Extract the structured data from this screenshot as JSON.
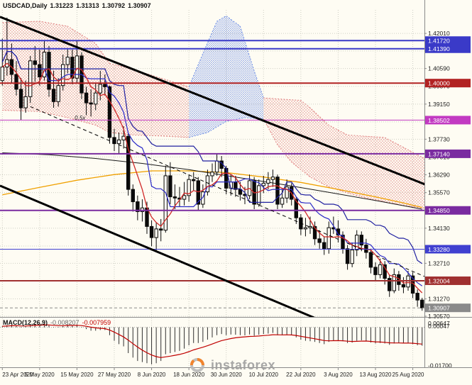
{
  "title": {
    "symbol": "USDCAD,Daily",
    "open": "1.31223",
    "high": "1.31313",
    "low": "1.30792",
    "close": "1.30907"
  },
  "watermark": {
    "text": "instaforex"
  },
  "macd_panel": {
    "label": "MACD(12,26,9)",
    "value_main": "-0.008207",
    "value_signal": "-0.007959"
  },
  "colors": {
    "background": "#FEFCF3",
    "grid": "#CFCFC4",
    "axis_text": "#1A1A1A",
    "axis_line": "#8A8A8A",
    "divider": "#8A8A8A",
    "candle_outline": "#0A0A0A",
    "bull_fill": "#FEFCF3",
    "bear_fill": "#0A0A0A",
    "badge_text": "#FFFFFF",
    "macd_bar": "#303030",
    "macd_signal": "#C00000",
    "macd_zero": "#A0A0A0",
    "watermark_text": "#9E9E9E",
    "logo_orange": "#F07818",
    "logo_gray": "#B9B9B9",
    "cloud_red": "#E08080",
    "cloud_blue": "#6E8EE6",
    "tick_text": "#1A1A1A",
    "annotation": "#222222"
  },
  "chart_data": {
    "type": "candlestick",
    "symbol": "USDCAD",
    "timeframe": "Daily",
    "title": "USDCAD,Daily 1.31223 1.31313 1.30792 1.30907",
    "y_range": [
      1.3054,
      1.4296
    ],
    "y_axis_labels": [
      {
        "v": 1.4201,
        "text": "1.42010"
      },
      {
        "v": 1.4059,
        "text": "1.40590"
      },
      {
        "v": 1.3987,
        "text": "1.39870"
      },
      {
        "v": 1.3915,
        "text": "1.39150"
      },
      {
        "v": 1.3773,
        "text": "1.37730"
      },
      {
        "v": 1.3701,
        "text": "1.37010"
      },
      {
        "v": 1.3629,
        "text": "1.36290"
      },
      {
        "v": 1.3557,
        "text": "1.35570"
      },
      {
        "v": 1.3413,
        "text": "1.34130"
      },
      {
        "v": 1.3271,
        "text": "1.32710"
      },
      {
        "v": 1.3127,
        "text": "1.31270"
      },
      {
        "v": 1.3057,
        "text": "1.30570"
      }
    ],
    "y_gridlines": [
      1.4201,
      1.413,
      1.4059,
      1.3987,
      1.3915,
      1.3843,
      1.3773,
      1.3701,
      1.3629,
      1.3557,
      1.3485,
      1.3413,
      1.3341,
      1.3271,
      1.3199,
      1.3127,
      1.3057
    ],
    "x_ticks": {
      "indices": [
        0,
        8,
        16,
        24,
        32,
        40,
        48,
        56,
        64,
        72,
        80,
        88
      ],
      "labels": [
        "23 Apr 2020",
        "5 May 2020",
        "15 May 2020",
        "27 May 2020",
        "8 Jun 2020",
        "18 Jun 2020",
        "30 Jun 2020",
        "10 Jul 2020",
        "22 Jul 2020",
        "3 Aug 2020",
        "13 Aug 2020",
        "25 Aug 2020"
      ]
    },
    "candles": {
      "open": [
        1.401,
        1.4065,
        1.4095,
        1.4035,
        1.3975,
        1.39,
        1.3945,
        1.409,
        1.4075,
        1.4025,
        1.4125,
        1.3975,
        1.3925,
        1.399,
        1.4075,
        1.4105,
        1.402,
        1.411,
        1.396,
        1.392,
        1.3915,
        1.396,
        1.3995,
        1.3985,
        1.378,
        1.3755,
        1.377,
        1.3785,
        1.357,
        1.352,
        1.348,
        1.3495,
        1.342,
        1.3375,
        1.341,
        1.3405,
        1.3625,
        1.354,
        1.3535,
        1.353,
        1.3545,
        1.361,
        1.3605,
        1.351,
        1.356,
        1.3625,
        1.364,
        1.3685,
        1.3655,
        1.3575,
        1.36,
        1.357,
        1.355,
        1.3545,
        1.3605,
        1.351,
        1.3585,
        1.3595,
        1.361,
        1.362,
        1.351,
        1.3535,
        1.358,
        1.353,
        1.3455,
        1.341,
        1.3415,
        1.342,
        1.337,
        1.3355,
        1.333,
        1.3415,
        1.341,
        1.3385,
        1.333,
        1.327,
        1.3325,
        1.3385,
        1.3345,
        1.3315,
        1.3255,
        1.3225,
        1.3265,
        1.321,
        1.316,
        1.3225,
        1.3185,
        1.3175,
        1.322,
        1.315,
        1.31223
      ],
      "high": [
        1.418,
        1.4265,
        1.416,
        1.409,
        1.402,
        1.401,
        1.411,
        1.415,
        1.4135,
        1.417,
        1.415,
        1.405,
        1.402,
        1.4115,
        1.414,
        1.4135,
        1.417,
        1.4125,
        1.3985,
        1.3975,
        1.4,
        1.405,
        1.4035,
        1.399,
        1.3815,
        1.38,
        1.3825,
        1.3795,
        1.359,
        1.3545,
        1.353,
        1.352,
        1.3445,
        1.3435,
        1.345,
        1.3665,
        1.368,
        1.359,
        1.358,
        1.36,
        1.363,
        1.364,
        1.362,
        1.359,
        1.365,
        1.3675,
        1.3715,
        1.3705,
        1.3665,
        1.363,
        1.3625,
        1.36,
        1.358,
        1.363,
        1.362,
        1.361,
        1.3625,
        1.364,
        1.365,
        1.363,
        1.357,
        1.361,
        1.3595,
        1.354,
        1.347,
        1.3455,
        1.346,
        1.344,
        1.3405,
        1.338,
        1.344,
        1.346,
        1.3445,
        1.34,
        1.3345,
        1.3355,
        1.3405,
        1.34,
        1.337,
        1.333,
        1.3275,
        1.329,
        1.328,
        1.3225,
        1.325,
        1.324,
        1.3215,
        1.324,
        1.3235,
        1.3165,
        1.31313
      ],
      "low": [
        1.399,
        1.403,
        1.4,
        1.395,
        1.385,
        1.388,
        1.392,
        1.4005,
        1.399,
        1.401,
        1.3945,
        1.39,
        1.3905,
        1.397,
        1.404,
        1.3995,
        1.4,
        1.3935,
        1.387,
        1.3865,
        1.389,
        1.393,
        1.395,
        1.3755,
        1.3725,
        1.3715,
        1.3735,
        1.3545,
        1.348,
        1.3445,
        1.344,
        1.339,
        1.334,
        1.332,
        1.336,
        1.3395,
        1.351,
        1.349,
        1.35,
        1.3505,
        1.352,
        1.3565,
        1.3485,
        1.3495,
        1.3545,
        1.36,
        1.3625,
        1.362,
        1.355,
        1.3545,
        1.354,
        1.3525,
        1.351,
        1.353,
        1.349,
        1.35,
        1.3555,
        1.357,
        1.358,
        1.349,
        1.3495,
        1.3515,
        1.3505,
        1.343,
        1.3385,
        1.338,
        1.339,
        1.3345,
        1.333,
        1.3305,
        1.331,
        1.339,
        1.3355,
        1.331,
        1.3245,
        1.3255,
        1.33,
        1.332,
        1.329,
        1.323,
        1.32,
        1.321,
        1.3185,
        1.3135,
        1.315,
        1.316,
        1.315,
        1.316,
        1.313,
        1.3095,
        1.30792
      ],
      "close": [
        1.4065,
        1.4095,
        1.4035,
        1.3975,
        1.39,
        1.3945,
        1.409,
        1.4075,
        1.4025,
        1.4125,
        1.3975,
        1.3925,
        1.399,
        1.4075,
        1.4105,
        1.402,
        1.411,
        1.396,
        1.392,
        1.3915,
        1.396,
        1.3995,
        1.3985,
        1.378,
        1.3755,
        1.377,
        1.3785,
        1.357,
        1.352,
        1.348,
        1.3495,
        1.342,
        1.3375,
        1.341,
        1.3405,
        1.3625,
        1.354,
        1.3535,
        1.353,
        1.3545,
        1.361,
        1.3605,
        1.351,
        1.356,
        1.3625,
        1.364,
        1.3685,
        1.3655,
        1.3575,
        1.36,
        1.357,
        1.355,
        1.3545,
        1.3605,
        1.351,
        1.3585,
        1.3595,
        1.361,
        1.362,
        1.351,
        1.3535,
        1.358,
        1.353,
        1.3455,
        1.341,
        1.3415,
        1.342,
        1.337,
        1.3355,
        1.333,
        1.3415,
        1.341,
        1.3385,
        1.333,
        1.327,
        1.3325,
        1.3385,
        1.3345,
        1.3315,
        1.3255,
        1.3225,
        1.3265,
        1.321,
        1.316,
        1.3225,
        1.3185,
        1.3175,
        1.322,
        1.315,
        1.31223,
        1.30907
      ]
    },
    "levels": [
      {
        "price": 1.4172,
        "label": "1.41720",
        "color": "#3A3AC8",
        "lw": 2
      },
      {
        "price": 1.4139,
        "label": "1.41390",
        "color": "#3A3AC8",
        "lw": 2
      },
      {
        "price": 1.4,
        "label": "1.40000",
        "color": "#B22222",
        "lw": 2
      },
      {
        "price": 1.38502,
        "label": "1.38502",
        "color": "#C23AC2",
        "lw": 1
      },
      {
        "price": 1.3714,
        "label": "1.37140",
        "color": "#7A2BA0",
        "lw": 2
      },
      {
        "price": 1.3485,
        "label": "1.34850",
        "color": "#7A2BA0",
        "lw": 2
      },
      {
        "price": 1.3328,
        "label": "1.33280",
        "color": "#4040D0",
        "lw": 1
      },
      {
        "price": 1.32004,
        "label": "1.32004",
        "color": "#A03030",
        "lw": 2
      },
      {
        "price": 1.30907,
        "label": "1.30907",
        "color": "#8A8A8A",
        "lw": 1,
        "dash": "4,3",
        "current": true
      }
    ],
    "trendlines": [
      {
        "points": [
          [
            -0.5,
            1.4268
          ],
          [
            94,
            1.3565
          ]
        ],
        "color": "#000000",
        "width": 3
      },
      {
        "points": [
          [
            -0.5,
            1.3585
          ],
          [
            72,
            1.301
          ]
        ],
        "color": "#000000",
        "width": 3
      },
      {
        "points": [
          [
            6,
            1.3905
          ],
          [
            97,
            1.3165
          ]
        ],
        "color": "#000000",
        "width": 1,
        "dash": "5,4"
      }
    ],
    "cloud": [
      {
        "pattern": "red",
        "upper": [
          [
            0,
            1.4245
          ],
          [
            8,
            1.425
          ],
          [
            14,
            1.423
          ],
          [
            20,
            1.416
          ],
          [
            23,
            1.408
          ]
        ],
        "lower": [
          [
            0,
            1.389
          ],
          [
            8,
            1.3885
          ],
          [
            14,
            1.386
          ],
          [
            20,
            1.383
          ],
          [
            23,
            1.38
          ]
        ]
      },
      {
        "pattern": "red",
        "upper": [
          [
            23,
            1.408
          ],
          [
            28,
            1.4055
          ],
          [
            34,
            1.402
          ],
          [
            40,
            1.3985
          ]
        ],
        "lower": [
          [
            23,
            1.38
          ],
          [
            28,
            1.379
          ],
          [
            34,
            1.3786
          ],
          [
            40,
            1.378
          ]
        ]
      },
      {
        "pattern": "blue",
        "upper": [
          [
            40,
            1.3985
          ],
          [
            43,
            1.412
          ],
          [
            46,
            1.425
          ],
          [
            48,
            1.4272
          ],
          [
            51,
            1.423
          ],
          [
            54,
            1.405
          ],
          [
            56,
            1.394
          ]
        ],
        "lower": [
          [
            40,
            1.378
          ],
          [
            44,
            1.38
          ],
          [
            48,
            1.3845
          ],
          [
            52,
            1.386
          ],
          [
            56,
            1.3855
          ]
        ]
      },
      {
        "pattern": "red",
        "upper": [
          [
            56,
            1.394
          ],
          [
            60,
            1.3935
          ],
          [
            64,
            1.393
          ],
          [
            66,
            1.39
          ],
          [
            70,
            1.383
          ],
          [
            74,
            1.379
          ],
          [
            78,
            1.3785
          ],
          [
            82,
            1.378
          ],
          [
            86,
            1.374
          ],
          [
            90,
            1.37
          ],
          [
            94,
            1.366
          ],
          [
            97,
            1.364
          ]
        ],
        "lower": [
          [
            56,
            1.3855
          ],
          [
            59,
            1.375
          ],
          [
            62,
            1.368
          ],
          [
            66,
            1.362
          ],
          [
            70,
            1.358
          ],
          [
            74,
            1.3555
          ],
          [
            78,
            1.3535
          ],
          [
            82,
            1.352
          ],
          [
            86,
            1.3505
          ],
          [
            90,
            1.3495
          ],
          [
            94,
            1.349
          ],
          [
            97,
            1.3488
          ]
        ]
      }
    ],
    "overlays": [
      {
        "name": "ma-slow-orange",
        "color": "#F0A000",
        "width": 1.3,
        "points": [
          [
            0,
            1.3548
          ],
          [
            8,
            1.3578
          ],
          [
            16,
            1.3607
          ],
          [
            24,
            1.363
          ],
          [
            32,
            1.3645
          ],
          [
            40,
            1.3645
          ],
          [
            48,
            1.3638
          ],
          [
            56,
            1.362
          ],
          [
            64,
            1.3598
          ],
          [
            72,
            1.357
          ],
          [
            80,
            1.354
          ],
          [
            86,
            1.3515
          ],
          [
            90,
            1.3497
          ]
        ]
      },
      {
        "name": "ma-slow-black",
        "color": "#1A1A1A",
        "width": 1,
        "points": [
          [
            0,
            1.3718
          ],
          [
            10,
            1.371
          ],
          [
            20,
            1.3695
          ],
          [
            30,
            1.3675
          ],
          [
            40,
            1.365
          ],
          [
            50,
            1.362
          ],
          [
            60,
            1.359
          ],
          [
            70,
            1.3558
          ],
          [
            80,
            1.3525
          ],
          [
            90,
            1.349
          ]
        ]
      }
    ],
    "computed_overlays": [
      {
        "name": "tenkan-sen-blue",
        "type": "donchian",
        "period": 9,
        "color": "#2A2AC8",
        "width": 1.2
      },
      {
        "name": "kijun-sen-blue",
        "type": "donchian",
        "period": 26,
        "color": "#2020A0",
        "width": 1.2
      },
      {
        "name": "ma-fast-red",
        "type": "sma",
        "period": 5,
        "color": "#D02828",
        "width": 1.3
      }
    ],
    "annotations": [
      {
        "i": 15.5,
        "price": 1.3852,
        "text": "0.5x"
      }
    ],
    "macd": {
      "label": "MACD(12,26,9)",
      "main_value": -0.008207,
      "signal_value": -0.007959,
      "signal_ema_period": 9,
      "y_range": [
        -0.0175,
        0.004
      ],
      "axis_labels": [
        {
          "v": 0.00647,
          "text": "0.00647"
        },
        {
          "v": 0.00047,
          "text": "0.00047"
        },
        {
          "v": -0.017,
          "text": "-0.01700"
        }
      ],
      "values": [
        0.0005,
        0.001,
        0.0012,
        0.0008,
        0.0002,
        0.0004,
        0.0012,
        0.0015,
        0.0013,
        0.0018,
        0.0008,
        0.0002,
        0.0002,
        0.0008,
        0.0012,
        0.0008,
        0.0012,
        0.0002,
        -0.0008,
        -0.0015,
        -0.0015,
        -0.0012,
        -0.0012,
        -0.0035,
        -0.006,
        -0.0075,
        -0.0085,
        -0.0115,
        -0.0135,
        -0.015,
        -0.0155,
        -0.016,
        -0.0165,
        -0.016,
        -0.015,
        -0.012,
        -0.0115,
        -0.011,
        -0.0105,
        -0.0095,
        -0.008,
        -0.007,
        -0.007,
        -0.0065,
        -0.0055,
        -0.0045,
        -0.0035,
        -0.003,
        -0.0035,
        -0.0032,
        -0.0033,
        -0.0035,
        -0.0036,
        -0.0032,
        -0.0038,
        -0.0033,
        -0.003,
        -0.0028,
        -0.0025,
        -0.0035,
        -0.0035,
        -0.0032,
        -0.0036,
        -0.0045,
        -0.0055,
        -0.006,
        -0.0062,
        -0.0065,
        -0.007,
        -0.0075,
        -0.0065,
        -0.0058,
        -0.0058,
        -0.0062,
        -0.007,
        -0.0068,
        -0.006,
        -0.0058,
        -0.006,
        -0.0068,
        -0.0072,
        -0.007,
        -0.0072,
        -0.0078,
        -0.0072,
        -0.007,
        -0.0072,
        -0.007,
        -0.0075,
        -0.008,
        -0.0082
      ]
    }
  }
}
